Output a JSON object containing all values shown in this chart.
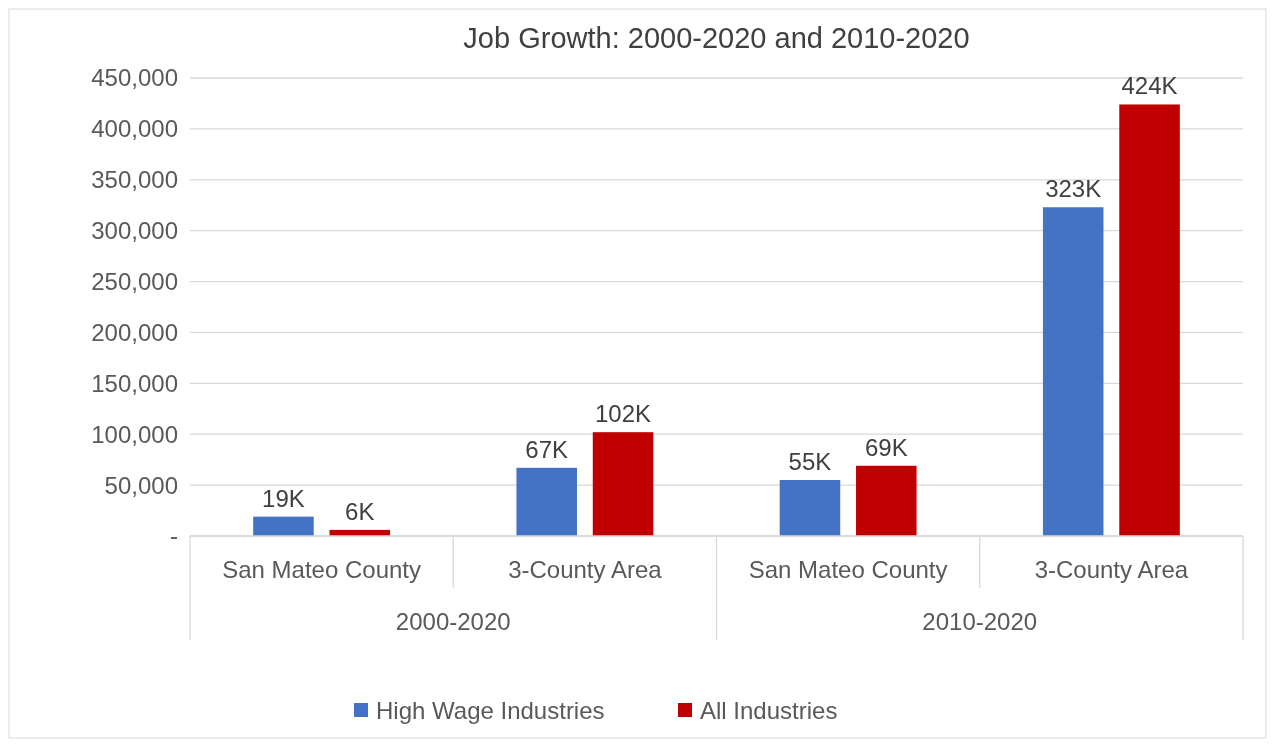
{
  "chart_data": {
    "type": "bar",
    "title": "Job Growth: 2000-2020 and 2010-2020",
    "categories": [
      "San Mateo County",
      "3-County Area",
      "San Mateo County",
      "3-County Area"
    ],
    "series": [
      {
        "name": "High Wage Industries",
        "color": "#4472c4",
        "values": [
          19000,
          67000,
          55000,
          323000
        ],
        "value_labels": [
          "19K",
          "67K",
          "55K",
          "323K"
        ]
      },
      {
        "name": "All Industries",
        "color": "#c00000",
        "values": [
          6000,
          102000,
          69000,
          424000
        ],
        "value_labels": [
          "6K",
          "102K",
          "69K",
          "424K"
        ]
      }
    ],
    "annotations": [
      "2000-2020",
      "2010-2020"
    ],
    "ylim": [
      0,
      450000
    ],
    "yticks": [
      {
        "value": 0,
        "label": "-"
      },
      {
        "value": 50000,
        "label": "50,000"
      },
      {
        "value": 100000,
        "label": "100,000"
      },
      {
        "value": 150000,
        "label": "150,000"
      },
      {
        "value": 200000,
        "label": "200,000"
      },
      {
        "value": 250000,
        "label": "250,000"
      },
      {
        "value": 300000,
        "label": "300,000"
      },
      {
        "value": 350000,
        "label": "350,000"
      },
      {
        "value": 400000,
        "label": "400,000"
      },
      {
        "value": 450000,
        "label": "450,000"
      }
    ],
    "grid": "y",
    "legend": "bottom"
  }
}
